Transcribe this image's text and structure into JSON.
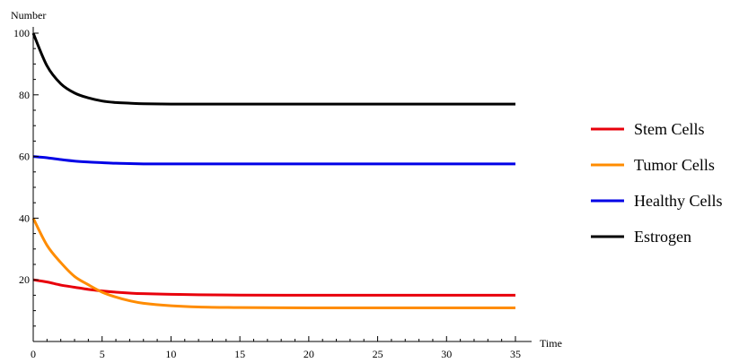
{
  "chart_data": {
    "type": "line",
    "xlabel": "Time",
    "ylabel": "Number",
    "xlim": [
      0,
      35
    ],
    "ylim": [
      0,
      100
    ],
    "xticks": [
      "0",
      "5",
      "10",
      "15",
      "20",
      "25",
      "30",
      "35"
    ],
    "yticks": [
      "20",
      "40",
      "60",
      "80",
      "100"
    ],
    "grid": false,
    "legend_position": "right",
    "x": [
      0,
      1,
      2,
      3,
      4,
      5,
      6,
      7,
      8,
      10,
      12,
      15,
      20,
      25,
      30,
      35
    ],
    "series": [
      {
        "name": "Stem Cells",
        "color": "#e8000b",
        "values": [
          20,
          19.3,
          18.3,
          17.6,
          16.9,
          16.4,
          16.0,
          15.7,
          15.5,
          15.3,
          15.15,
          15.05,
          15,
          15,
          15,
          15
        ]
      },
      {
        "name": "Tumor Cells",
        "color": "#ff8c00",
        "values": [
          40,
          31.2,
          25.6,
          21.1,
          18.4,
          16.0,
          14.4,
          13.2,
          12.4,
          11.6,
          11.2,
          11.0,
          10.9,
          10.9,
          10.9,
          10.9
        ]
      },
      {
        "name": "Healthy Cells",
        "color": "#0000e6",
        "values": [
          60,
          59.6,
          59.0,
          58.5,
          58.2,
          58.0,
          57.8,
          57.7,
          57.6,
          57.6,
          57.6,
          57.6,
          57.6,
          57.6,
          57.6,
          57.6
        ]
      },
      {
        "name": "Estrogen",
        "color": "#000000",
        "values": [
          100,
          89.4,
          83.6,
          80.6,
          79.0,
          78.0,
          77.5,
          77.3,
          77.1,
          77.0,
          77.0,
          77.0,
          77.0,
          77.0,
          77.0,
          77.0
        ]
      }
    ]
  }
}
